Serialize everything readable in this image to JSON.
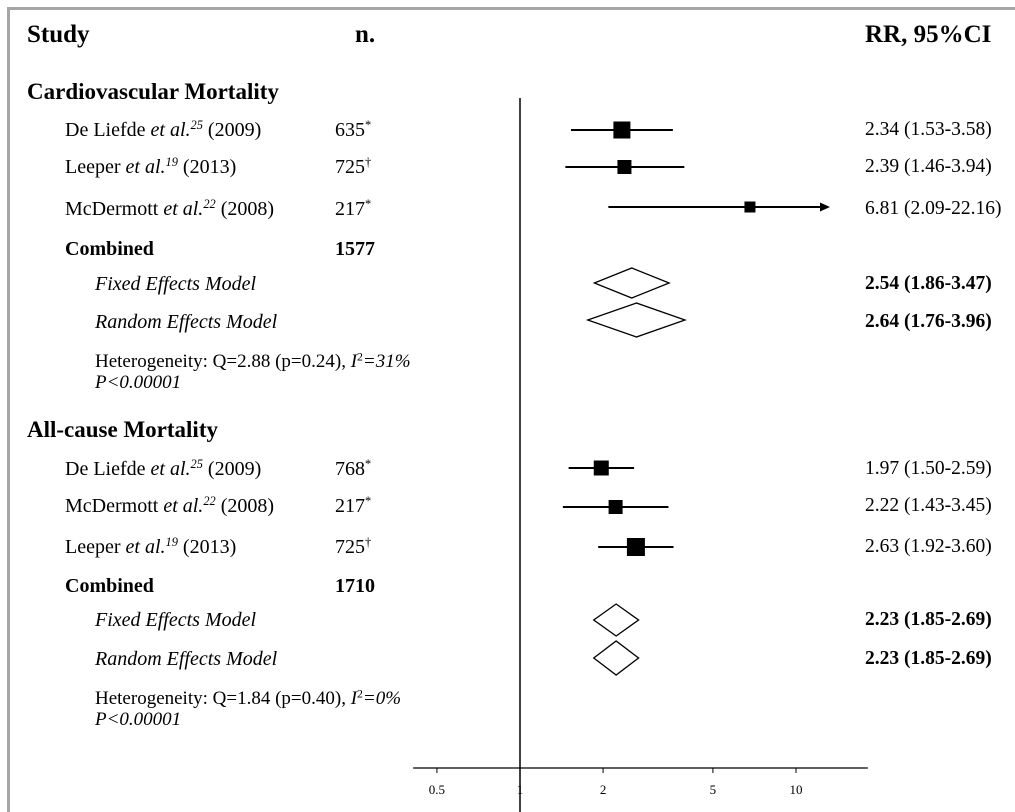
{
  "header": {
    "study": "Study",
    "n": "n.",
    "rr_ci": "RR, 95%CI"
  },
  "colors": {
    "ink": "#000000",
    "frame": "#a6a6a6",
    "background": "#ffffff",
    "diamond_fill": "#ffffff"
  },
  "chart_data": {
    "type": "scatter",
    "x_scale": "log",
    "xlim": [
      0.41,
      18.2
    ],
    "xticks": [
      0.5,
      1,
      2,
      5,
      10
    ],
    "xtick_labels": [
      "0.5",
      "1",
      "2",
      "5",
      "10"
    ],
    "reference_line": 1,
    "grid": false,
    "groups": [
      {
        "title": "Cardiovascular Mortality",
        "studies": [
          {
            "author": "De Liefde",
            "etal": "et al.",
            "ref": "25",
            "year": "(2009)",
            "n": "635",
            "n_mark": "*",
            "rr": 2.34,
            "lo": 1.53,
            "hi": 3.58,
            "ci_text": "2.34 (1.53-3.58)"
          },
          {
            "author": "Leeper",
            "etal": "et al.",
            "ref": "19",
            "year": "(2013)",
            "n": "725",
            "n_mark": "†",
            "rr": 2.39,
            "lo": 1.46,
            "hi": 3.94,
            "ci_text": "2.39 (1.46-3.94)"
          },
          {
            "author": "McDermott",
            "etal": "et al.",
            "ref": "22",
            "year": "(2008)",
            "n": "217",
            "n_mark": "*",
            "rr": 6.81,
            "lo": 2.09,
            "hi": 22.16,
            "ci_text": "6.81 (2.09-22.16)"
          }
        ],
        "combined_label": "Combined",
        "combined_n": "1577",
        "models": [
          {
            "label": "Fixed Effects Model",
            "rr": 2.54,
            "lo": 1.86,
            "hi": 3.47,
            "ci_text": "2.54 (1.86-3.47)"
          },
          {
            "label": "Random Effects Model",
            "rr": 2.64,
            "lo": 1.76,
            "hi": 3.96,
            "ci_text": "2.64 (1.76-3.96)"
          }
        ],
        "heterogeneity": {
          "q_text": "Heterogeneity: Q=2.88 (p=0.24),",
          "i2_symbol": "I",
          "i2_sup": "2",
          "i2_value": "=31%",
          "p_value": "P<0.00001"
        }
      },
      {
        "title": "All-cause Mortality",
        "studies": [
          {
            "author": "De Liefde",
            "etal": "et al.",
            "ref": "25",
            "year": "(2009)",
            "n": "768",
            "n_mark": "*",
            "rr": 1.97,
            "lo": 1.5,
            "hi": 2.59,
            "ci_text": "1.97 (1.50-2.59)"
          },
          {
            "author": "McDermott",
            "etal": "et al.",
            "ref": "22",
            "year": "(2008)",
            "n": "217",
            "n_mark": "*",
            "rr": 2.22,
            "lo": 1.43,
            "hi": 3.45,
            "ci_text": "2.22 (1.43-3.45)"
          },
          {
            "author": "Leeper",
            "etal": "et al.",
            "ref": "19",
            "year": "(2013)",
            "n": "725",
            "n_mark": "†",
            "rr": 2.63,
            "lo": 1.92,
            "hi": 3.6,
            "ci_text": "2.63 (1.92-3.60)"
          }
        ],
        "combined_label": "Combined",
        "combined_n": "1710",
        "models": [
          {
            "label": "Fixed Effects Model",
            "rr": 2.23,
            "lo": 1.85,
            "hi": 2.69,
            "ci_text": "2.23 (1.85-2.69)"
          },
          {
            "label": "Random Effects Model",
            "rr": 2.23,
            "lo": 1.85,
            "hi": 2.69,
            "ci_text": "2.23 (1.85-2.69)"
          }
        ],
        "heterogeneity": {
          "q_text": "Heterogeneity: Q=1.84 (p=0.40),",
          "i2_symbol": "I",
          "i2_sup": "2",
          "i2_value": "=0%",
          "p_value": "P<0.00001"
        }
      }
    ]
  }
}
